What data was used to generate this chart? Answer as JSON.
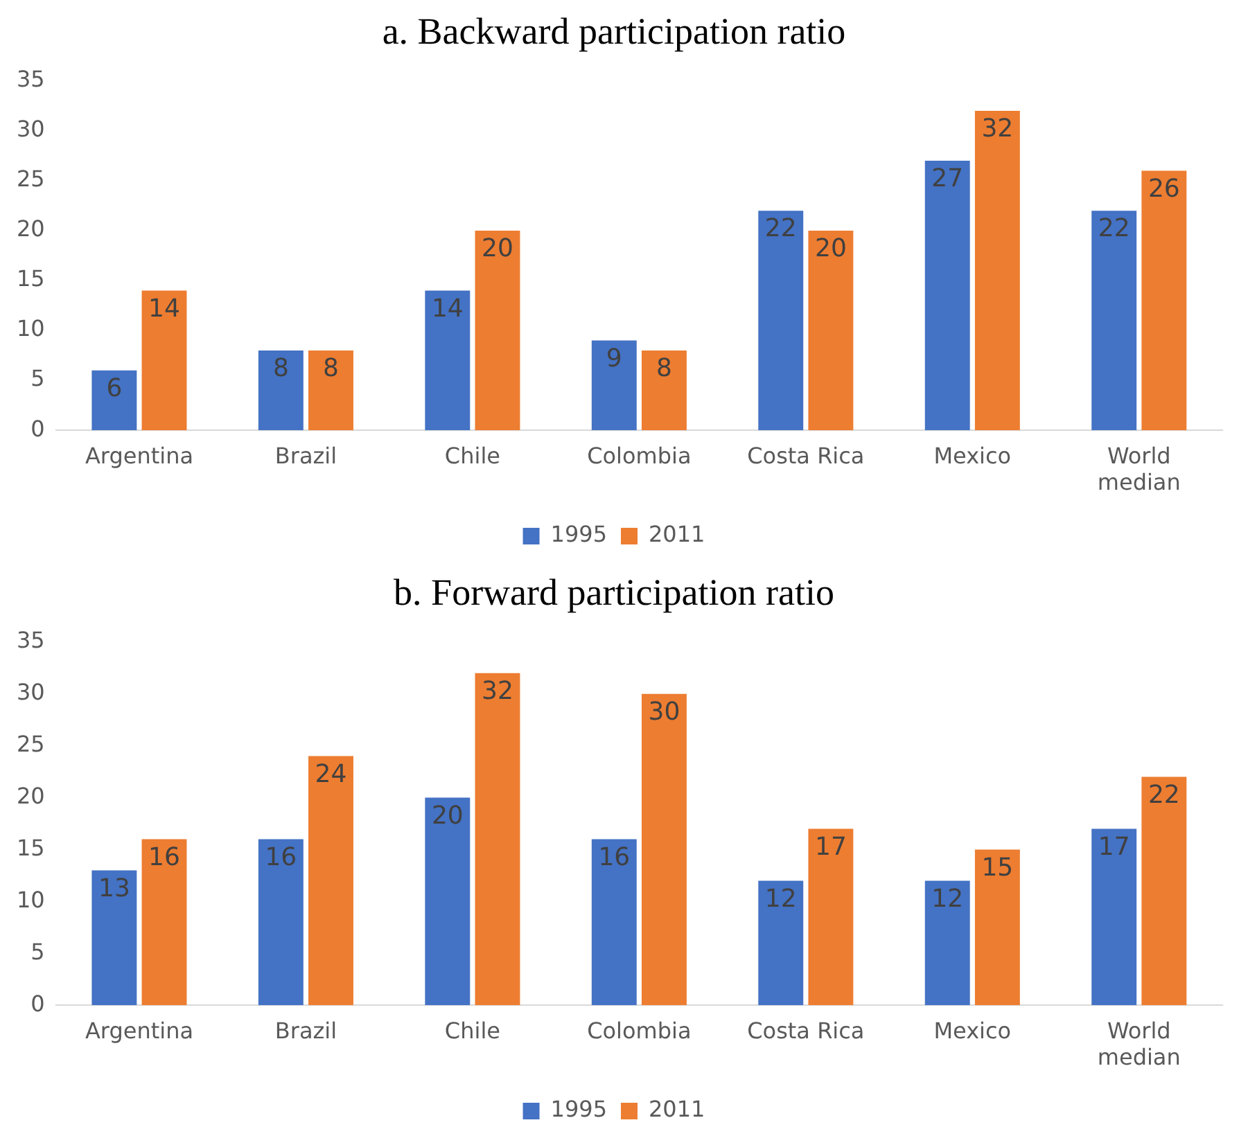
{
  "chart_data": [
    {
      "type": "bar",
      "title": "a. Backward participation ratio",
      "categories": [
        "Argentina",
        "Brazil",
        "Chile",
        "Colombia",
        "Costa Rica",
        "Mexico",
        "World median"
      ],
      "series": [
        {
          "name": "1995",
          "color": "#4472c4",
          "values": [
            6,
            8,
            14,
            9,
            22,
            27,
            22
          ]
        },
        {
          "name": "2011",
          "color": "#ed7d31",
          "values": [
            14,
            8,
            20,
            8,
            20,
            32,
            26
          ]
        }
      ],
      "ylim": [
        0,
        35
      ],
      "yticks": [
        0,
        5,
        10,
        15,
        20,
        25,
        30,
        35
      ],
      "grid": false,
      "legend": "bottom",
      "data_labels": true
    },
    {
      "type": "bar",
      "title": "b. Forward participation ratio",
      "categories": [
        "Argentina",
        "Brazil",
        "Chile",
        "Colombia",
        "Costa Rica",
        "Mexico",
        "World median"
      ],
      "series": [
        {
          "name": "1995",
          "color": "#4472c4",
          "values": [
            13,
            16,
            20,
            16,
            12,
            12,
            17
          ]
        },
        {
          "name": "2011",
          "color": "#ed7d31",
          "values": [
            16,
            24,
            32,
            30,
            17,
            15,
            22
          ]
        }
      ],
      "ylim": [
        0,
        35
      ],
      "yticks": [
        0,
        5,
        10,
        15,
        20,
        25,
        30,
        35
      ],
      "grid": false,
      "legend": "bottom",
      "data_labels": true
    }
  ]
}
